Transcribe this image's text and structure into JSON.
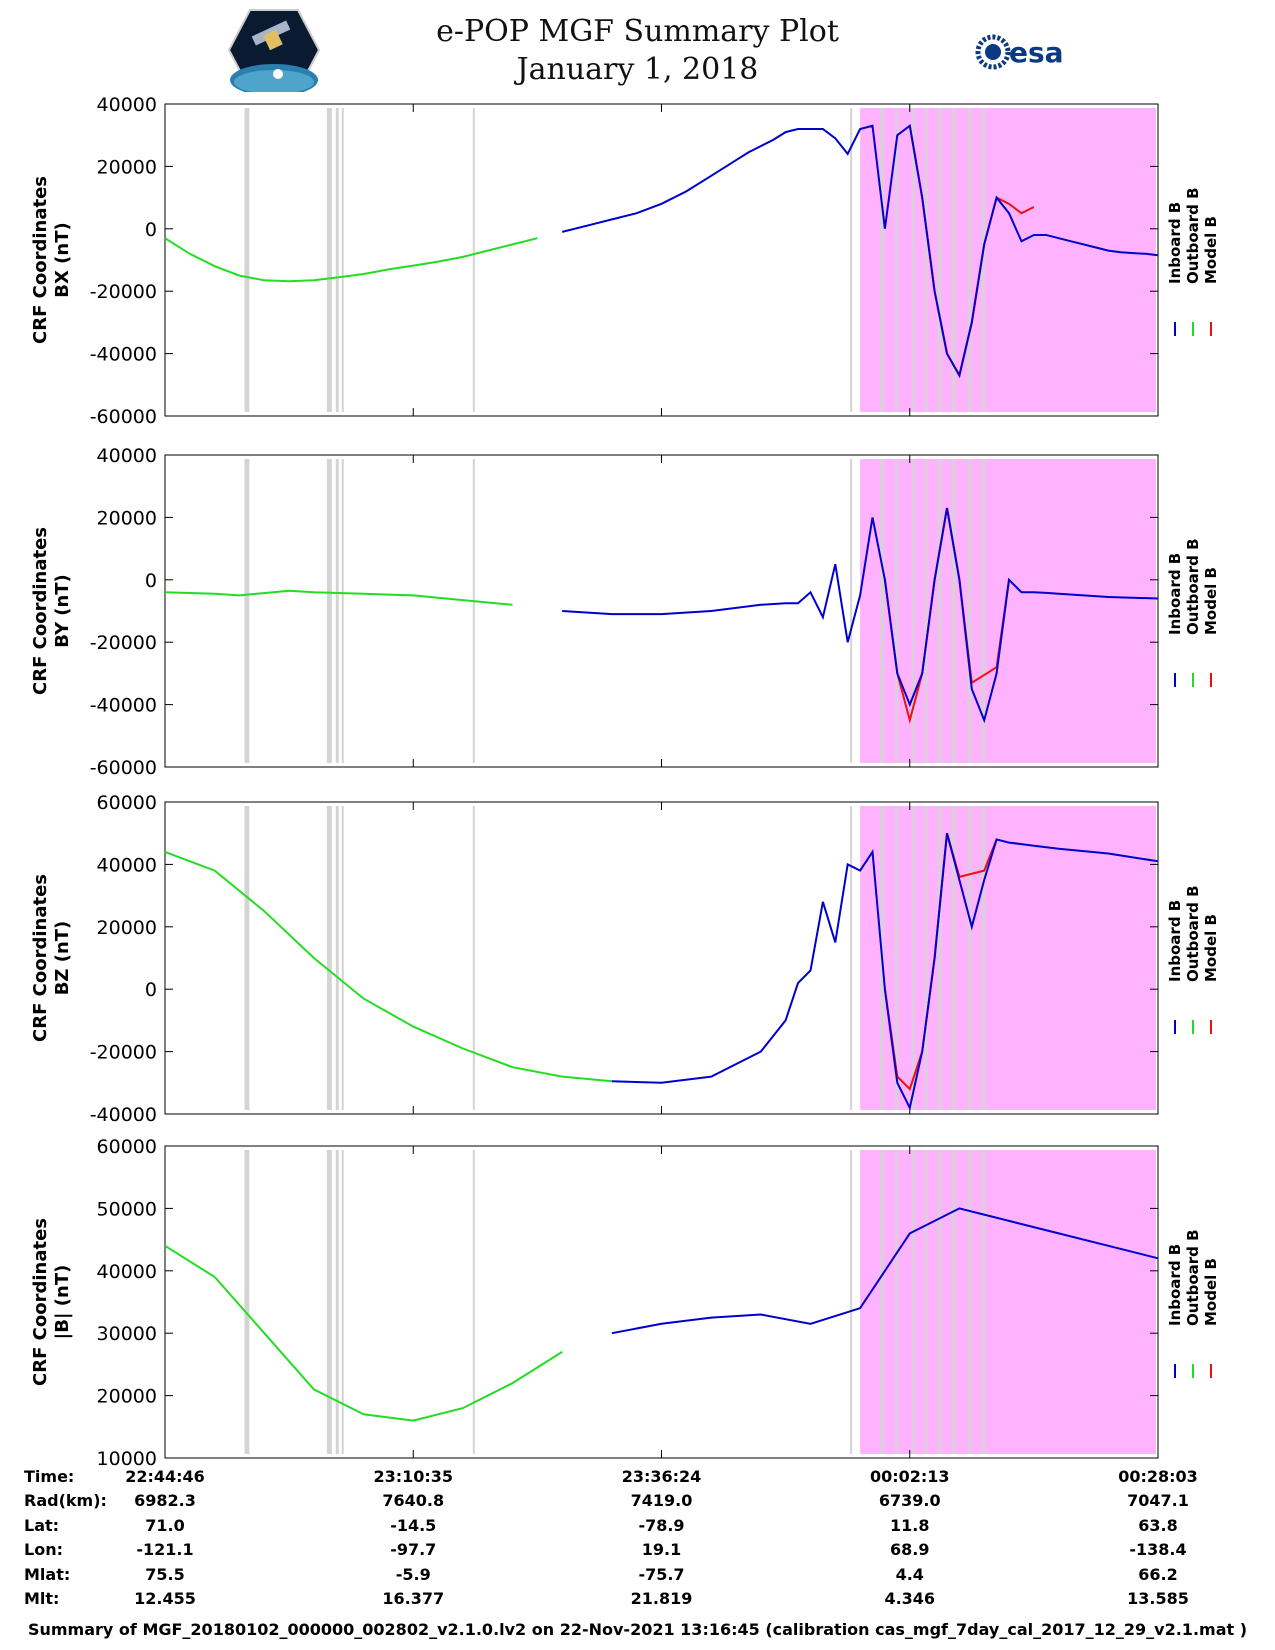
{
  "header": {
    "title_line1": "e-POP MGF Summary Plot",
    "title_line2": "January 1, 2018",
    "logo_left": "cassiope-logo",
    "logo_right_text": "esa"
  },
  "legend": {
    "inboard": "Inboard B",
    "outboard": "Outboard B",
    "model": "Model B"
  },
  "colors": {
    "inboard": "#0000cc",
    "outboard": "#22dd22",
    "model": "#ee1111",
    "shade": "#ffb3ff",
    "gap": "#d4d4d4"
  },
  "chart_data": [
    {
      "type": "line",
      "ylabel_line1": "CRF Coordinates",
      "ylabel_line2": "BX (nT)",
      "ylim": [
        -60000,
        40000
      ],
      "yticks": [
        "40000",
        "20000",
        "0",
        "-20000",
        "-40000",
        "-60000"
      ],
      "x": [
        0,
        0.1,
        0.2,
        0.25,
        0.3,
        0.4,
        0.5,
        0.6,
        0.7,
        0.8,
        0.9,
        1.0,
        1.1,
        1.2,
        1.3,
        1.4,
        1.5,
        1.6,
        1.7,
        1.8,
        1.9,
        2.0,
        2.1,
        2.2,
        2.3,
        2.35,
        2.4,
        2.45,
        2.5,
        2.55,
        2.6,
        2.65,
        2.7,
        2.75,
        2.8,
        2.85,
        2.9,
        2.95,
        3.0,
        3.05,
        3.1,
        3.15,
        3.2,
        3.25,
        3.3,
        3.35,
        3.4,
        3.45,
        3.5,
        3.55,
        3.6,
        3.65,
        3.7,
        3.75,
        3.8,
        3.85,
        3.9,
        3.95,
        4.0
      ],
      "values": [
        -3000,
        -8000,
        -12000,
        -13500,
        -15000,
        -16500,
        -16800,
        -16500,
        -15500,
        -14500,
        -13000,
        -11800,
        -10500,
        -9000,
        -7000,
        -5000,
        -3000,
        -1000,
        1000,
        3000,
        5000,
        8000,
        12000,
        17000,
        22000,
        24500,
        26500,
        28500,
        31000,
        32000,
        32000,
        32000,
        29000,
        24000,
        32000,
        33000,
        0,
        30000,
        33000,
        10000,
        -20000,
        -40000,
        -47000,
        -30000,
        -5000,
        10000,
        5000,
        -4000,
        -2000,
        -2000,
        -3000,
        -4000,
        -5000,
        -6000,
        -7000,
        -7500,
        -7800,
        -8000,
        -8500
      ],
      "segments": [
        {
          "x": [
            0.0,
            1.55
          ],
          "color": "outboard"
        },
        {
          "x": [
            1.55,
            4.0
          ],
          "color": "inboard"
        }
      ],
      "model": {
        "x": [
          3.0,
          3.05,
          3.1,
          3.15,
          3.2,
          3.25,
          3.3,
          3.35,
          3.4,
          3.45,
          3.5
        ],
        "values": [
          33000,
          10000,
          -20000,
          -40000,
          -47000,
          -30000,
          -5000,
          10000,
          8000,
          5000,
          7000
        ]
      }
    },
    {
      "type": "line",
      "ylabel_line1": "CRF Coordinates",
      "ylabel_line2": "BY (nT)",
      "ylim": [
        -60000,
        40000
      ],
      "yticks": [
        "40000",
        "20000",
        "0",
        "-20000",
        "-40000",
        "-60000"
      ],
      "x": [
        0,
        0.2,
        0.3,
        0.5,
        0.6,
        0.8,
        1.0,
        1.2,
        1.4,
        1.6,
        1.8,
        2.0,
        2.2,
        2.4,
        2.5,
        2.55,
        2.6,
        2.65,
        2.7,
        2.75,
        2.8,
        2.85,
        2.9,
        2.95,
        3.0,
        3.05,
        3.1,
        3.15,
        3.2,
        3.25,
        3.3,
        3.35,
        3.4,
        3.45,
        3.5,
        3.55,
        3.6,
        3.7,
        3.8,
        4.0
      ],
      "values": [
        -4000,
        -4500,
        -5000,
        -3500,
        -4000,
        -4500,
        -5000,
        -6500,
        -8000,
        -10000,
        -11000,
        -11000,
        -10000,
        -8000,
        -7500,
        -7500,
        -4000,
        -12000,
        5000,
        -20000,
        -5000,
        20000,
        0,
        -30000,
        -40000,
        -30000,
        0,
        23000,
        0,
        -35000,
        -45000,
        -30000,
        0,
        -4000,
        -4000,
        -4200,
        -4500,
        -5000,
        -5500,
        -6000
      ],
      "segments": [
        {
          "x": [
            0.0,
            1.45
          ],
          "color": "outboard"
        },
        {
          "x": [
            1.45,
            4.0
          ],
          "color": "inboard"
        }
      ],
      "model": {
        "x": [
          2.9,
          2.95,
          3.0,
          3.05,
          3.1,
          3.15,
          3.2,
          3.25,
          3.35,
          3.4
        ],
        "values": [
          0,
          -30000,
          -45000,
          -30000,
          0,
          23000,
          0,
          -33000,
          -28000,
          0
        ]
      }
    },
    {
      "type": "line",
      "ylabel_line1": "CRF Coordinates",
      "ylabel_line2": "BZ (nT)",
      "ylim": [
        -40000,
        60000
      ],
      "yticks": [
        "60000",
        "40000",
        "20000",
        "0",
        "-20000",
        "-40000"
      ],
      "x": [
        0,
        0.2,
        0.4,
        0.6,
        0.8,
        1.0,
        1.2,
        1.4,
        1.6,
        1.8,
        2.0,
        2.2,
        2.4,
        2.5,
        2.55,
        2.6,
        2.65,
        2.7,
        2.75,
        2.8,
        2.85,
        2.9,
        2.95,
        3.0,
        3.05,
        3.1,
        3.15,
        3.2,
        3.25,
        3.3,
        3.35,
        3.4,
        3.45,
        3.5,
        3.6,
        3.8,
        4.0
      ],
      "values": [
        44000,
        38000,
        25000,
        10000,
        -3000,
        -12000,
        -19000,
        -25000,
        -28000,
        -29500,
        -30000,
        -28000,
        -20000,
        -10000,
        2000,
        6000,
        28000,
        15000,
        40000,
        38000,
        44000,
        0,
        -30000,
        -38000,
        -20000,
        10000,
        50000,
        35000,
        20000,
        35000,
        48000,
        47000,
        46500,
        46000,
        45000,
        43500,
        41000
      ],
      "segments": [
        {
          "x": [
            0.0,
            1.8
          ],
          "color": "outboard"
        },
        {
          "x": [
            1.8,
            4.0
          ],
          "color": "inboard"
        }
      ],
      "model": {
        "x": [
          2.9,
          2.95,
          3.0,
          3.05,
          3.1,
          3.15,
          3.2,
          3.3,
          3.35
        ],
        "values": [
          0,
          -28000,
          -32000,
          -20000,
          10000,
          50000,
          36000,
          38000,
          48000
        ]
      }
    },
    {
      "type": "line",
      "ylabel_line1": "CRF Coordinates",
      "ylabel_line2": "|B| (nT)",
      "ylim": [
        10000,
        60000
      ],
      "yticks": [
        "60000",
        "50000",
        "40000",
        "30000",
        "20000",
        "10000"
      ],
      "x": [
        0,
        0.2,
        0.4,
        0.6,
        0.8,
        1.0,
        1.2,
        1.4,
        1.6,
        1.8,
        2.0,
        2.2,
        2.4,
        2.6,
        2.8,
        3.0,
        3.2,
        3.4,
        3.6,
        3.8,
        4.0
      ],
      "values": [
        44000,
        39000,
        30000,
        21000,
        17000,
        16000,
        18000,
        22000,
        27000,
        30000,
        31500,
        32500,
        33000,
        31500,
        34000,
        46000,
        50000,
        48000,
        46000,
        44000,
        42000
      ],
      "segments": [
        {
          "x": [
            0.0,
            1.75
          ],
          "color": "outboard"
        },
        {
          "x": [
            1.75,
            4.0
          ],
          "color": "inboard"
        }
      ],
      "model": null
    }
  ],
  "time_axis": {
    "row_labels": [
      "Time:",
      "Rad(km):",
      "Lat:",
      "Lon:",
      "Mlat:",
      "Mlt:"
    ],
    "columns": [
      [
        "22:44:46",
        "6982.3",
        "71.0",
        "-121.1",
        "75.5",
        "12.455"
      ],
      [
        "23:10:35",
        "7640.8",
        "-14.5",
        "-97.7",
        "-5.9",
        "16.377"
      ],
      [
        "23:36:24",
        "7419.0",
        "-78.9",
        "19.1",
        "-75.7",
        "21.819"
      ],
      [
        "00:02:13",
        "6739.0",
        "11.8",
        "68.9",
        "4.4",
        "4.346"
      ],
      [
        "00:28:03",
        "7047.1",
        "63.8",
        "-138.4",
        "66.2",
        "13.585"
      ]
    ]
  },
  "footer": "Summary of MGF_20180102_000000_002802_v2.1.0.lv2 on 22-Nov-2021 13:16:45 (calibration cas_mgf_7day_cal_2017_12_29_v2.1.mat )"
}
